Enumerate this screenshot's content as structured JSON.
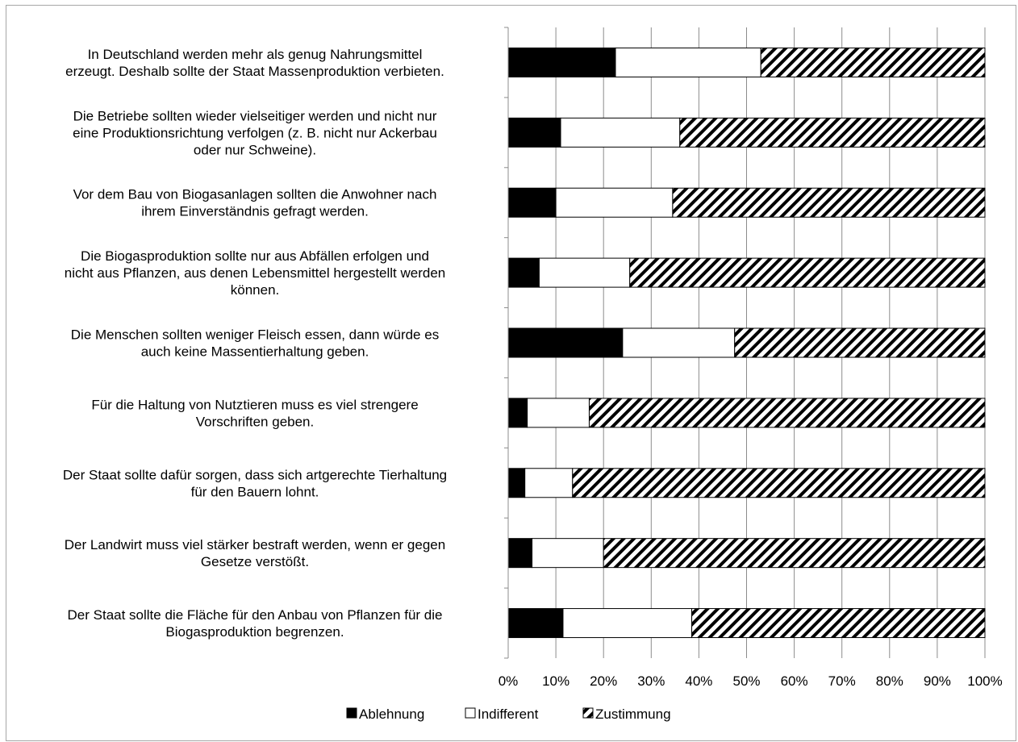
{
  "chart_data": {
    "type": "bar",
    "orientation": "horizontal",
    "stacked": "percent",
    "categories": [
      [
        "In Deutschland werden mehr als genug Nahrungsmittel",
        "erzeugt. Deshalb sollte der Staat Massenproduktion verbieten."
      ],
      [
        "Die Betriebe sollten wieder vielseitiger werden und nicht nur",
        "eine Produktionsrichtung verfolgen (z. B. nicht nur Ackerbau",
        "oder nur Schweine)."
      ],
      [
        "Vor dem Bau von Biogasanlagen sollten die Anwohner nach",
        "ihrem Einverständnis gefragt werden."
      ],
      [
        "Die Biogasproduktion sollte nur aus Abfällen erfolgen und",
        "nicht aus Pflanzen, aus denen Lebensmittel hergestellt werden",
        "können."
      ],
      [
        "Die Menschen sollten weniger Fleisch essen, dann würde es",
        "auch keine Massentierhaltung geben."
      ],
      [
        "Für die Haltung von Nutztieren muss es viel strengere",
        "Vorschriften geben."
      ],
      [
        "Der Staat sollte dafür sorgen, dass sich artgerechte Tierhaltung",
        "für den Bauern lohnt."
      ],
      [
        "Der Landwirt muss viel stärker bestraft werden, wenn er gegen",
        "Gesetze verstößt."
      ],
      [
        "Der Staat sollte die Fläche für den Anbau von Pflanzen für die",
        "Biogasproduktion begrenzen."
      ]
    ],
    "series": [
      {
        "name": "Ablehnung",
        "color": "#000000",
        "pattern": "solid",
        "values": [
          22.5,
          11,
          10,
          6.5,
          24,
          4,
          3.5,
          5,
          11.5
        ]
      },
      {
        "name": "Indifferent",
        "color": "#ffffff",
        "pattern": "none",
        "values": [
          30.5,
          25,
          24.5,
          19,
          23.5,
          13,
          10,
          15,
          27
        ]
      },
      {
        "name": "Zustimmung",
        "color": "#000000",
        "pattern": "diagonal-hatch",
        "values": [
          47,
          64,
          65.5,
          74.5,
          52.5,
          83,
          86.5,
          80,
          61.5
        ]
      }
    ],
    "x_ticks": [
      "0%",
      "10%",
      "20%",
      "30%",
      "40%",
      "50%",
      "60%",
      "70%",
      "80%",
      "90%",
      "100%"
    ],
    "xlim": [
      0,
      100
    ],
    "grid": true,
    "legend_position": "bottom"
  }
}
